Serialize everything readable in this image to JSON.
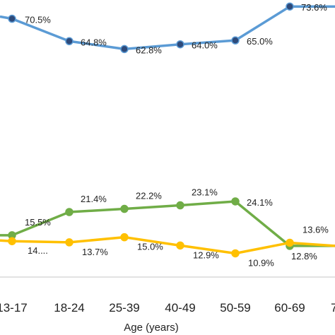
{
  "chart_data": {
    "type": "line",
    "categories": [
      "13-17",
      "18-24",
      "25-39",
      "40-49",
      "50-59",
      "60-69",
      "7"
    ],
    "xlabel": "Age (years)",
    "ylabel": "",
    "ylim": [
      0,
      80
    ],
    "grid": false,
    "series": [
      {
        "color": "#5B9BD5",
        "values": [
          70.5,
          64.8,
          62.8,
          64.0,
          65.0,
          73.6,
          73.6
        ],
        "labels": [
          "70.5%",
          "64.8%",
          "62.8%",
          "64.0%",
          "65.0%",
          "73.6%",
          null
        ]
      },
      {
        "color": "#70AD47",
        "values": [
          15.5,
          21.4,
          22.2,
          23.1,
          24.1,
          12.8,
          12.8
        ],
        "labels": [
          "15.5%",
          "21.4%",
          "22.2%",
          "23.1%",
          "24.1%",
          null,
          null
        ]
      },
      {
        "color": "#FFC000",
        "values": [
          14.0,
          13.7,
          15.0,
          12.9,
          10.9,
          13.6,
          12.8
        ],
        "labels": [
          "14....",
          "13.7%",
          "15.0%",
          "12.9%",
          "10.9%",
          "13.6%",
          null
        ]
      }
    ],
    "extra_labels": [
      "12.8%"
    ]
  }
}
